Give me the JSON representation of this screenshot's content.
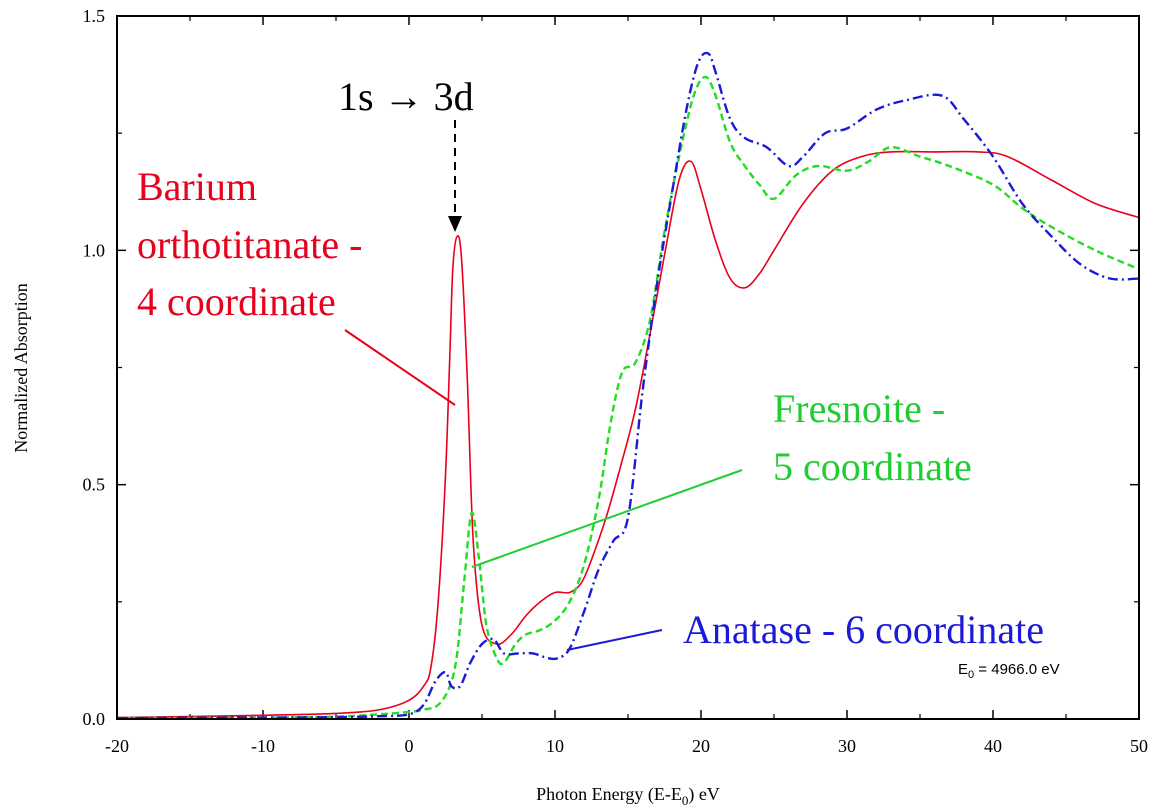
{
  "chart_data": {
    "type": "line",
    "xlabel": "Photon Energy (E-E",
    "xlabel_sub": "0",
    "xlabel_suffix": ") eV",
    "ylabel": "Normalized Absorption",
    "xlim": [
      -20,
      50
    ],
    "ylim": [
      0.0,
      1.5
    ],
    "x_ticks": [
      -20,
      -10,
      0,
      10,
      20,
      30,
      40,
      50
    ],
    "x_tick_labels": [
      "-20",
      "-10",
      "0",
      "10",
      "20",
      "30",
      "40",
      "50"
    ],
    "y_ticks": [
      0.0,
      0.5,
      1.0,
      1.5
    ],
    "y_tick_labels": [
      "0.0",
      "0.5",
      "1.0",
      "1.5"
    ],
    "grid": false,
    "series": [
      {
        "name": "Barium orthotitanate - 4 coordinate",
        "color": "#e8001c",
        "style": "solid",
        "x": [
          -20,
          -10,
          -5,
          -2,
          0,
          1,
          1.5,
          2,
          2.5,
          2.8,
          3.0,
          3.3,
          3.6,
          4.0,
          4.4,
          5.0,
          6.0,
          7.0,
          8.0,
          9.0,
          10.0,
          11.0,
          11.8,
          12.5,
          13.5,
          14.5,
          15.5,
          16.5,
          17.5,
          18.5,
          19.3,
          20.0,
          21.0,
          22.0,
          23.0,
          24.0,
          25.0,
          27.0,
          29.0,
          31.0,
          33.0,
          36.0,
          39.0,
          41.0,
          44.0,
          47.0,
          50.0
        ],
        "y": [
          0.003,
          0.008,
          0.012,
          0.02,
          0.04,
          0.07,
          0.11,
          0.25,
          0.52,
          0.78,
          0.96,
          1.03,
          0.98,
          0.72,
          0.38,
          0.2,
          0.16,
          0.18,
          0.22,
          0.25,
          0.27,
          0.27,
          0.29,
          0.34,
          0.43,
          0.54,
          0.66,
          0.82,
          0.99,
          1.15,
          1.19,
          1.13,
          1.02,
          0.94,
          0.92,
          0.95,
          1.0,
          1.1,
          1.17,
          1.2,
          1.21,
          1.21,
          1.21,
          1.2,
          1.15,
          1.1,
          1.07
        ]
      },
      {
        "name": "Fresnoite - 5 coordinate",
        "color": "#22dd22",
        "style": "dashed",
        "x": [
          -20,
          -10,
          -5,
          -2,
          0,
          1,
          2,
          2.8,
          3.3,
          3.8,
          4.3,
          4.8,
          5.3,
          6.0,
          6.5,
          7.3,
          8.0,
          9.0,
          10.0,
          11.0,
          12.0,
          13.0,
          13.8,
          14.6,
          15.5,
          16.5,
          17.5,
          18.5,
          19.5,
          20.3,
          21.0,
          22.0,
          23.0,
          24.0,
          25.0,
          26.5,
          28.0,
          30.0,
          31.5,
          33.0,
          35.0,
          37.0,
          40.0,
          42.0,
          44.0,
          47.0,
          50.0
        ],
        "y": [
          0.002,
          0.003,
          0.005,
          0.01,
          0.015,
          0.02,
          0.03,
          0.07,
          0.14,
          0.3,
          0.44,
          0.34,
          0.2,
          0.13,
          0.12,
          0.16,
          0.18,
          0.19,
          0.21,
          0.25,
          0.33,
          0.47,
          0.63,
          0.74,
          0.76,
          0.85,
          1.04,
          1.2,
          1.33,
          1.37,
          1.33,
          1.23,
          1.18,
          1.14,
          1.11,
          1.16,
          1.18,
          1.17,
          1.19,
          1.22,
          1.2,
          1.18,
          1.14,
          1.09,
          1.05,
          1.0,
          0.96
        ]
      },
      {
        "name": "Anatase - 6 coordinate",
        "color": "#1a1ad8",
        "style": "dashdot",
        "x": [
          -20,
          -10,
          -5,
          -2,
          0,
          1,
          1.8,
          2.5,
          2.9,
          3.5,
          4.2,
          5.0,
          5.8,
          6.5,
          7.5,
          8.5,
          9.5,
          10.2,
          11.0,
          12.0,
          13.0,
          14.0,
          15.0,
          16.0,
          17.0,
          18.0,
          19.0,
          19.8,
          20.5,
          21.0,
          22.0,
          23.0,
          24.5,
          26.0,
          27.0,
          28.5,
          30.0,
          32.0,
          34.0,
          36.5,
          38.0,
          40.0,
          42.0,
          44.0,
          46.0,
          48.0,
          50.0
        ],
        "y": [
          0.002,
          0.003,
          0.004,
          0.006,
          0.01,
          0.03,
          0.08,
          0.1,
          0.07,
          0.07,
          0.12,
          0.16,
          0.17,
          0.14,
          0.14,
          0.14,
          0.13,
          0.13,
          0.15,
          0.23,
          0.32,
          0.38,
          0.43,
          0.7,
          0.93,
          1.12,
          1.3,
          1.4,
          1.42,
          1.38,
          1.28,
          1.24,
          1.22,
          1.18,
          1.2,
          1.25,
          1.26,
          1.3,
          1.32,
          1.33,
          1.28,
          1.2,
          1.1,
          1.03,
          0.97,
          0.94,
          0.94
        ]
      }
    ],
    "annotations": {
      "transition": "1s → 3d",
      "barium_line1": "Barium",
      "barium_line2": "orthotitanate -",
      "barium_line3": "4 coordinate",
      "fresnoite_line1": "Fresnoite -",
      "fresnoite_line2": "5 coordinate",
      "anatase": "Anatase - 6 coordinate",
      "e0_prefix": "E",
      "e0_sub": "0",
      "e0_value": " = 4966.0 eV"
    }
  }
}
